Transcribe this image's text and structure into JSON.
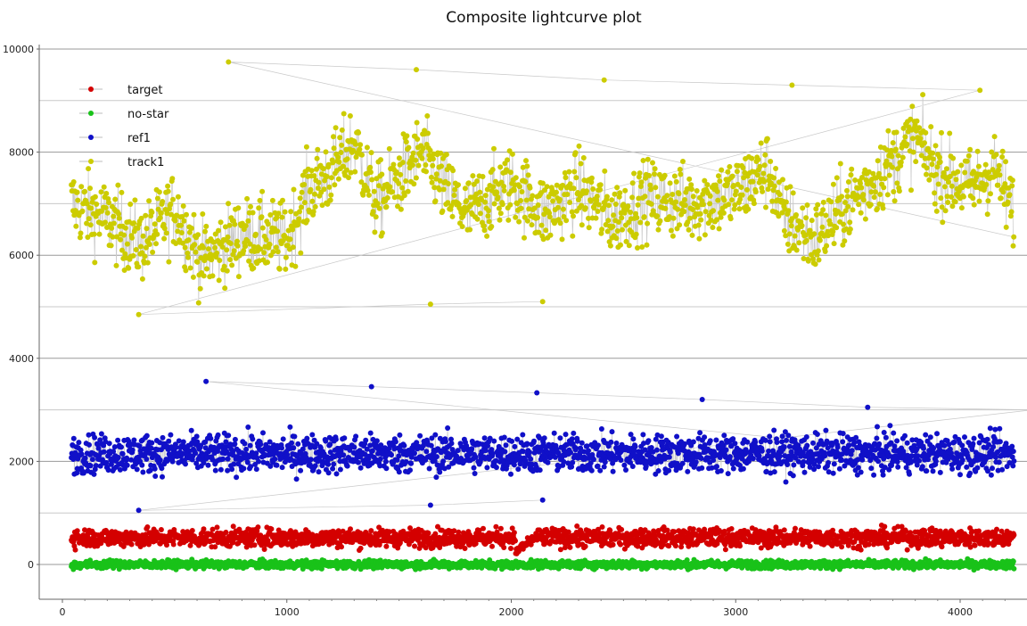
{
  "chart_data": {
    "type": "scatter",
    "title": "Composite lightcurve plot",
    "xlabel": "",
    "ylabel": "",
    "xlim": [
      -50,
      4260
    ],
    "ylim": [
      -700,
      10200
    ],
    "x_ticks": [
      0,
      1000,
      2000,
      3000,
      4000
    ],
    "y_ticks": [
      0,
      2000,
      4000,
      6000,
      8000,
      10000
    ],
    "grid": true,
    "legend_position": "top-left",
    "x_range": [
      40,
      4240
    ],
    "series": [
      {
        "name": "target",
        "color": "#d40000",
        "mean": 520,
        "spread": 160,
        "notes": "gap near x=2000-2100, dips to ~250"
      },
      {
        "name": "no-star",
        "color": "#19c219",
        "mean": 0,
        "spread": 70
      },
      {
        "name": "ref1",
        "color": "#1010c8",
        "mean": 2150,
        "spread": 330,
        "outliers_high": [
          3550,
          3450,
          3330,
          3200,
          3050,
          3000
        ],
        "outliers_low": [
          1050,
          1150,
          1250
        ]
      },
      {
        "name": "track1",
        "color": "#cccc00",
        "trend": [
          [
            40,
            7000
          ],
          [
            200,
            6700
          ],
          [
            350,
            6200
          ],
          [
            500,
            6900
          ],
          [
            620,
            5900
          ],
          [
            800,
            6400
          ],
          [
            1000,
            6300
          ],
          [
            1100,
            7300
          ],
          [
            1200,
            7600
          ],
          [
            1300,
            8200
          ],
          [
            1400,
            7000
          ],
          [
            1600,
            8000
          ],
          [
            1700,
            7300
          ],
          [
            1800,
            6800
          ],
          [
            2000,
            7400
          ],
          [
            2150,
            6800
          ],
          [
            2300,
            7300
          ],
          [
            2450,
            6700
          ],
          [
            2600,
            7100
          ],
          [
            2800,
            7000
          ],
          [
            3000,
            7200
          ],
          [
            3150,
            7700
          ],
          [
            3200,
            6800
          ],
          [
            3350,
            6300
          ],
          [
            3500,
            7000
          ],
          [
            3700,
            7800
          ],
          [
            3800,
            8300
          ],
          [
            3900,
            7600
          ],
          [
            4050,
            7300
          ],
          [
            4150,
            7700
          ],
          [
            4240,
            6800
          ]
        ],
        "spread": 650,
        "outliers_high": [
          9750,
          9600,
          9400,
          9300,
          9200
        ],
        "outliers_low": [
          4850,
          5050,
          5100
        ]
      }
    ]
  }
}
